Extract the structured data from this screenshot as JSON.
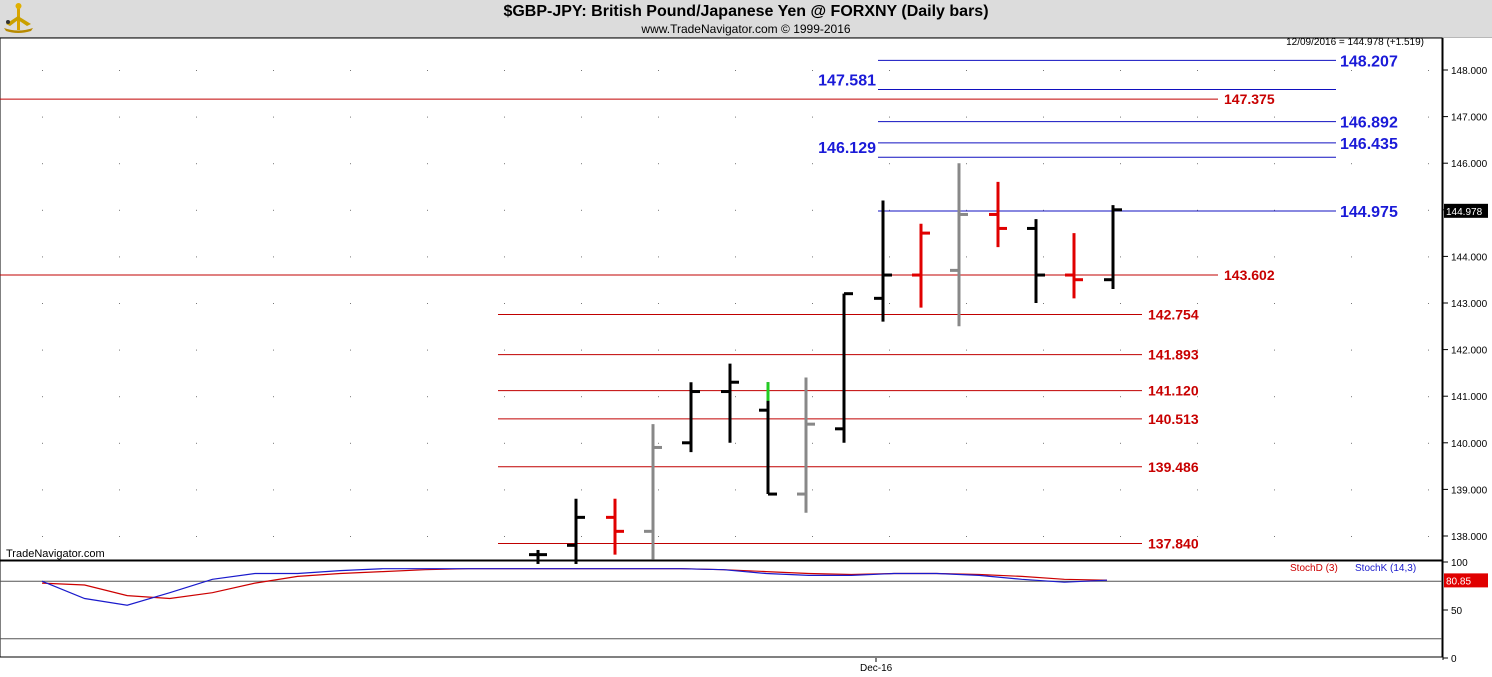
{
  "header": {
    "title": "$GBP-JPY:  British Pound/Japanese Yen @ FORXNY  (Daily bars)",
    "subtitle": "www.TradeNavigator.com © 1999-2016"
  },
  "watermark": "TradeNavigator.com",
  "last_close_label": "12/09/2016 = 144.978 (+1.519)",
  "price_tag": "144.978",
  "stoch": {
    "d_label": "StochD (3)",
    "k_label": "StochK (14,3)",
    "value_tag": "80.85",
    "ticks": [
      "100",
      "50",
      "0"
    ],
    "d_color": "#cc0000",
    "k_color": "#1a1acc"
  },
  "x_tick": "Dec-16",
  "colors": {
    "up_bar": "#000000",
    "down_bar": "#e00000",
    "neutral_bar": "#888888",
    "highlight_bar": "#22cc22",
    "blue_line": "#1010c0",
    "red_line": "#c00000"
  },
  "chart_data": {
    "type": "ohlc",
    "ylim": [
      137.5,
      148.6
    ],
    "yticks": [
      {
        "v": 138,
        "label": "138.000"
      },
      {
        "v": 139,
        "label": "139.000"
      },
      {
        "v": 140,
        "label": "140.000"
      },
      {
        "v": 141,
        "label": "141.000"
      },
      {
        "v": 142,
        "label": "142.000"
      },
      {
        "v": 143,
        "label": "143.000"
      },
      {
        "v": 144,
        "label": "144.000"
      },
      {
        "v": 145,
        "label": "145.000"
      },
      {
        "v": 146,
        "label": "146.000"
      },
      {
        "v": 147,
        "label": "147.000"
      },
      {
        "v": 148,
        "label": "148.000"
      }
    ],
    "bars": [
      {
        "o": 137.6,
        "h": 137.7,
        "l": 137.4,
        "c": 137.6,
        "color": "black"
      },
      {
        "o": 137.8,
        "h": 138.8,
        "l": 137.4,
        "c": 138.4,
        "color": "black"
      },
      {
        "o": 138.4,
        "h": 138.8,
        "l": 137.6,
        "c": 138.1,
        "color": "red"
      },
      {
        "o": 138.1,
        "h": 140.4,
        "l": 137.5,
        "c": 139.9,
        "color": "gray"
      },
      {
        "o": 140.0,
        "h": 141.3,
        "l": 139.8,
        "c": 141.1,
        "color": "black"
      },
      {
        "o": 141.1,
        "h": 141.7,
        "l": 140.0,
        "c": 141.3,
        "color": "black"
      },
      {
        "o": 140.7,
        "h": 141.3,
        "l": 138.9,
        "c": 138.9,
        "color": "black",
        "top": 140.9,
        "top_color": "green"
      },
      {
        "o": 138.9,
        "h": 141.4,
        "l": 138.5,
        "c": 140.4,
        "color": "gray"
      },
      {
        "o": 140.3,
        "h": 143.2,
        "l": 140.0,
        "c": 143.2,
        "color": "black"
      },
      {
        "o": 143.1,
        "h": 145.2,
        "l": 142.6,
        "c": 143.6,
        "color": "black"
      },
      {
        "o": 143.6,
        "h": 144.7,
        "l": 142.9,
        "c": 144.5,
        "color": "red"
      },
      {
        "o": 143.7,
        "h": 146.0,
        "l": 142.5,
        "c": 144.9,
        "color": "gray"
      },
      {
        "o": 144.9,
        "h": 145.6,
        "l": 144.2,
        "c": 144.6,
        "color": "red"
      },
      {
        "o": 144.6,
        "h": 144.8,
        "l": 143.0,
        "c": 143.6,
        "color": "black"
      },
      {
        "o": 143.6,
        "h": 144.5,
        "l": 143.1,
        "c": 143.5,
        "color": "red"
      },
      {
        "o": 143.5,
        "h": 145.1,
        "l": 143.3,
        "c": 145.0,
        "color": "black"
      }
    ],
    "levels": [
      {
        "v": 148.207,
        "label": "148.207",
        "color": "blue",
        "from": 878,
        "to": 1336,
        "label_side": "right"
      },
      {
        "v": 147.581,
        "label": "147.581",
        "color": "blue",
        "from": 878,
        "to": 1336,
        "label_side": "left"
      },
      {
        "v": 147.375,
        "label": "147.375",
        "color": "red",
        "from": 0,
        "to": 1218,
        "label_side": "right"
      },
      {
        "v": 146.892,
        "label": "146.892",
        "color": "blue",
        "from": 878,
        "to": 1336,
        "label_side": "right"
      },
      {
        "v": 146.435,
        "label": "146.435",
        "color": "blue",
        "from": 878,
        "to": 1336,
        "label_side": "right"
      },
      {
        "v": 146.129,
        "label": "146.129",
        "color": "blue",
        "from": 878,
        "to": 1336,
        "label_side": "left"
      },
      {
        "v": 144.975,
        "label": "144.975",
        "color": "blue",
        "from": 878,
        "to": 1336,
        "label_side": "right"
      },
      {
        "v": 143.602,
        "label": "143.602",
        "color": "red",
        "from": 0,
        "to": 1218,
        "label_side": "right"
      },
      {
        "v": 142.754,
        "label": "142.754",
        "color": "red",
        "from": 498,
        "to": 1142,
        "label_side": "right"
      },
      {
        "v": 141.893,
        "label": "141.893",
        "color": "red",
        "from": 498,
        "to": 1142,
        "label_side": "right"
      },
      {
        "v": 141.12,
        "label": "141.120",
        "color": "red",
        "from": 498,
        "to": 1142,
        "label_side": "right"
      },
      {
        "v": 140.513,
        "label": "140.513",
        "color": "red",
        "from": 498,
        "to": 1142,
        "label_side": "right"
      },
      {
        "v": 139.486,
        "label": "139.486",
        "color": "red",
        "from": 498,
        "to": 1142,
        "label_side": "right"
      },
      {
        "v": 137.84,
        "label": "137.840",
        "color": "red",
        "from": 498,
        "to": 1142,
        "label_side": "right"
      }
    ],
    "stoch_d": [
      78,
      76,
      65,
      62,
      68,
      78,
      85,
      88,
      90,
      92,
      93,
      93,
      93,
      93,
      93,
      93,
      92,
      90,
      88,
      87,
      88,
      88,
      87,
      85,
      82,
      81
    ],
    "stoch_k": [
      80,
      62,
      55,
      68,
      82,
      88,
      88,
      91,
      93,
      93,
      93,
      93,
      93,
      93,
      93,
      93,
      92,
      88,
      86,
      86,
      88,
      88,
      86,
      82,
      79,
      81
    ]
  }
}
